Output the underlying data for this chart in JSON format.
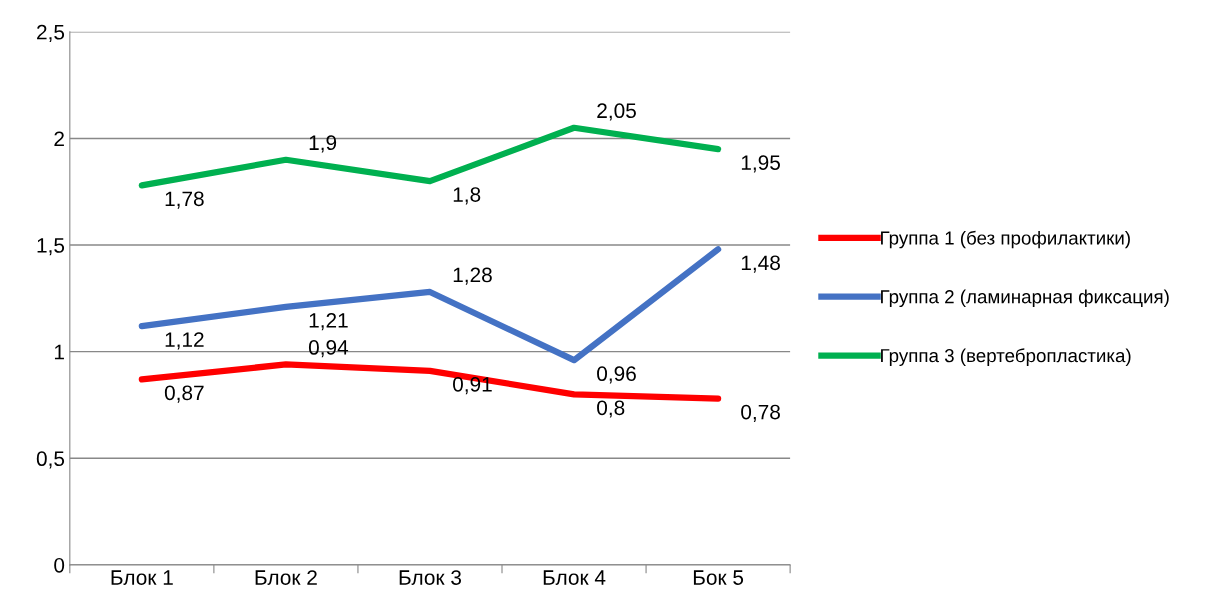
{
  "chart_data": {
    "type": "line",
    "categories": [
      "Блок 1",
      "Блок 2",
      "Блок 3",
      "Блок 4",
      "Бок 5"
    ],
    "series": [
      {
        "name": "Группа 1 (без профилактики)",
        "color": "#ff0000",
        "values": [
          0.87,
          0.94,
          0.91,
          0.8,
          0.78
        ],
        "value_labels": [
          "0,87",
          "0,94",
          "0,91",
          "0,8",
          "0,78"
        ]
      },
      {
        "name": "Группа 2 (ламинарная фиксация)",
        "color": "#4472c4",
        "values": [
          1.12,
          1.21,
          1.28,
          0.96,
          1.48
        ],
        "value_labels": [
          "1,12",
          "1,21",
          "1,28",
          "0,96",
          "1,48"
        ]
      },
      {
        "name": "Группа 3 (вертебропластика)",
        "color": "#00b050",
        "values": [
          1.78,
          1.9,
          1.8,
          2.05,
          1.95
        ],
        "value_labels": [
          "1,78",
          "1,9",
          "1,8",
          "2,05",
          "1,95"
        ]
      }
    ],
    "ylim": [
      0,
      2.5
    ],
    "yticks": [
      0,
      {
        "value": 0.5,
        "label": "0,5"
      },
      1,
      {
        "value": 1.5,
        "label": "1,5"
      },
      2,
      {
        "value": 2.5,
        "label": "2,5"
      }
    ],
    "grid": "y",
    "legend": "right",
    "marker": "none",
    "line_style": "solid"
  }
}
